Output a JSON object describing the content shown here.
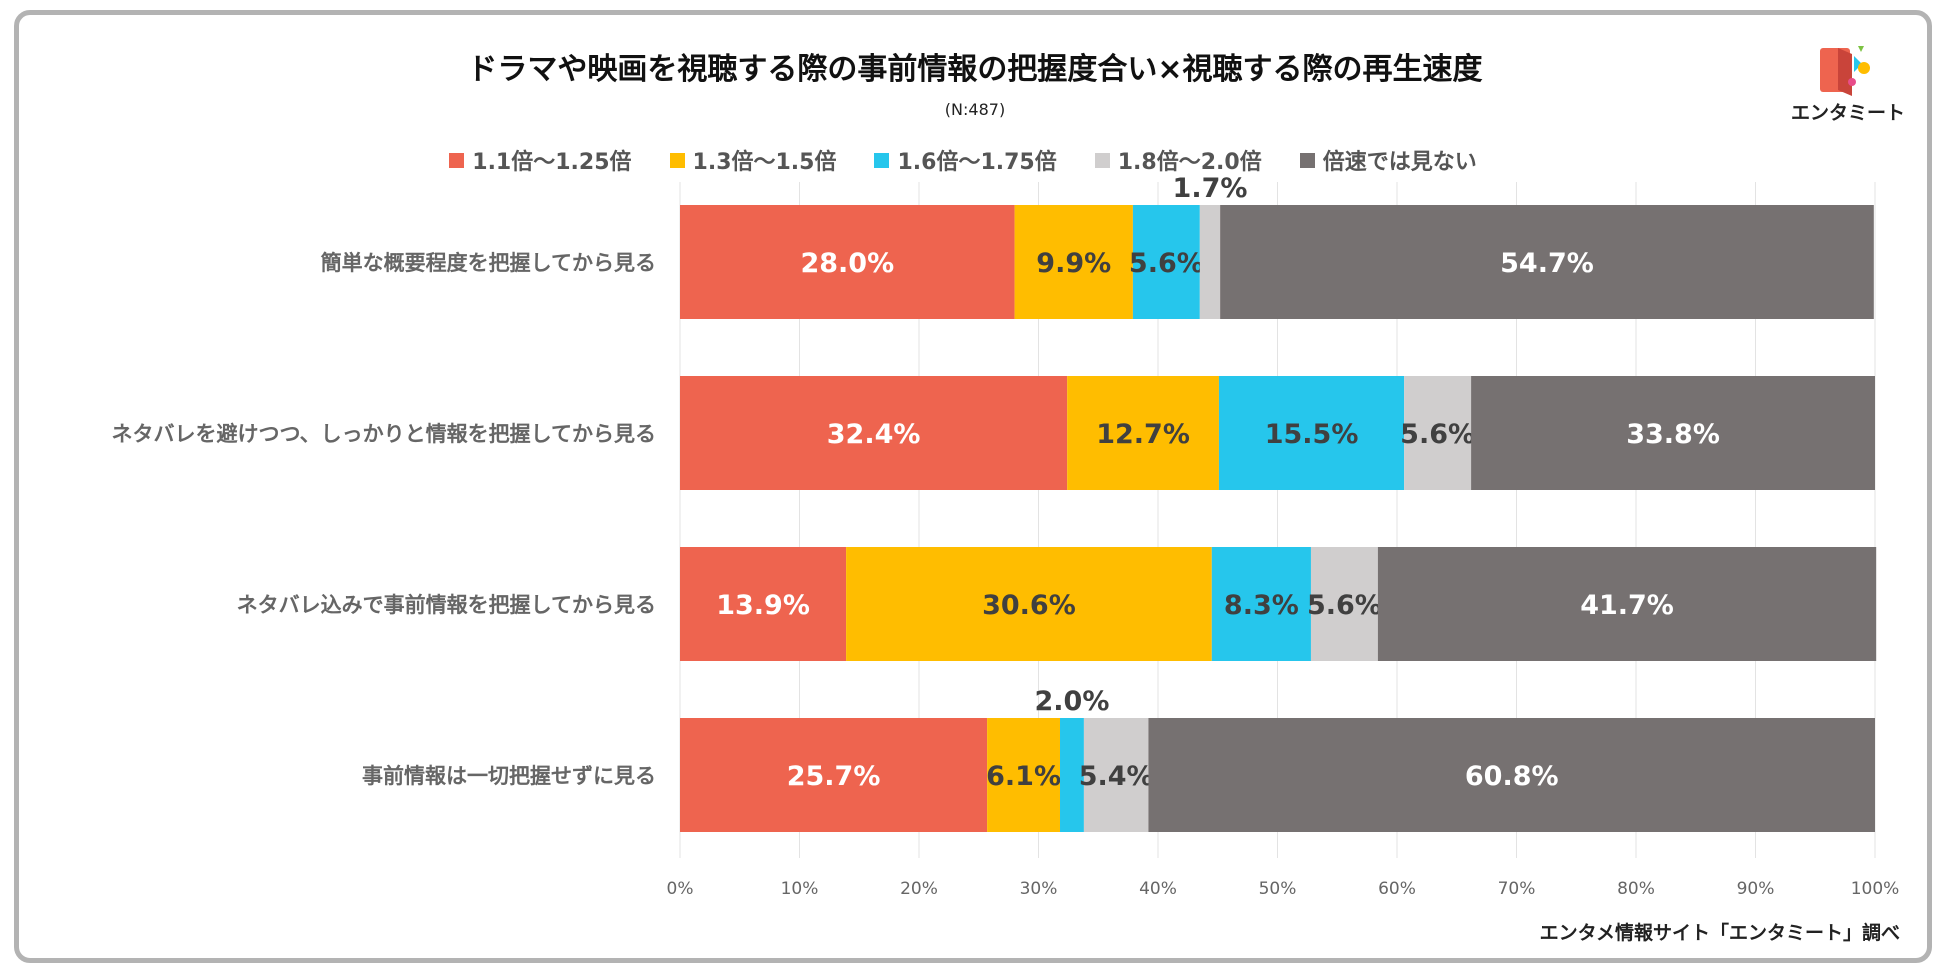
{
  "chart_data": {
    "type": "bar",
    "orientation": "horizontal-stacked-100",
    "title": "ドラマや映画を視聴する際の事前情報の把握度合い×視聴する際の再生速度",
    "subtitle": "(N:487)",
    "categories": [
      "簡単な概要程度を把握してから見る",
      "ネタバレを避けつつ、しっかりと情報を把握してから見る",
      "ネタバレ込みで事前情報を把握してから見る",
      "事前情報は一切把握せずに見る"
    ],
    "series": [
      {
        "name": "1.1倍〜1.25倍",
        "color": "#ee644f",
        "label_color": "#ffffff",
        "values": [
          28.0,
          32.4,
          13.9,
          25.7
        ],
        "labels": [
          "28.0%",
          "32.4%",
          "13.9%",
          "25.7%"
        ]
      },
      {
        "name": "1.3倍〜1.5倍",
        "color": "#ffbd00",
        "label_color": "#404040",
        "values": [
          9.9,
          12.7,
          30.6,
          6.1
        ],
        "labels": [
          "9.9%",
          "12.7%",
          "30.6%",
          "6.1%"
        ]
      },
      {
        "name": "1.6倍〜1.75倍",
        "color": "#26c6ec",
        "label_color": "#404040",
        "values": [
          5.6,
          15.5,
          8.3,
          2.0
        ],
        "labels": [
          "5.6%",
          "15.5%",
          "8.3%",
          "2.0%"
        ]
      },
      {
        "name": "1.8倍〜2.0倍",
        "color": "#d0cece",
        "label_color": "#404040",
        "values": [
          1.7,
          5.6,
          5.6,
          5.4
        ],
        "labels": [
          "1.7%",
          "5.6%",
          "5.6%",
          "5.4%"
        ]
      },
      {
        "name": "倍速では見ない",
        "color": "#767171",
        "label_color": "#ffffff",
        "values": [
          54.7,
          33.8,
          41.7,
          60.8
        ],
        "labels": [
          "54.7%",
          "33.8%",
          "41.7%",
          "60.8%"
        ]
      }
    ],
    "outside_labels": [
      {
        "category_index": 0,
        "series_index": 3
      },
      {
        "category_index": 3,
        "series_index": 2
      }
    ],
    "xlim": [
      0,
      100
    ],
    "x_ticks": [
      "0%",
      "10%",
      "20%",
      "30%",
      "40%",
      "50%",
      "60%",
      "70%",
      "80%",
      "90%",
      "100%"
    ],
    "grid": true,
    "legend_position": "top"
  },
  "logo": {
    "text": "エンタミート"
  },
  "source": "エンタメ情報サイト「エンタミート」調べ"
}
